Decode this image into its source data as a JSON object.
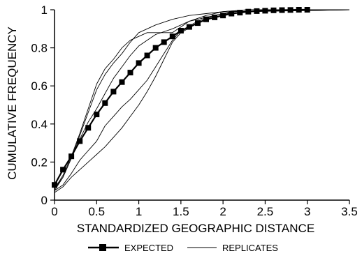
{
  "chart_data": {
    "type": "line",
    "title": "",
    "xlabel": "STANDARDIZED GEOGRAPHIC DISTANCE",
    "ylabel": "CUMULATIVE FREQUENCY",
    "xlim": [
      0,
      3.5
    ],
    "ylim": [
      0,
      1
    ],
    "xticks": [
      "0",
      "0.5",
      "1",
      "1.5",
      "2",
      "2.5",
      "3",
      "3.5"
    ],
    "yticks": [
      "0",
      "0.2",
      "0.4",
      "0.6",
      "0.8",
      "1"
    ],
    "grid": false,
    "legend_position": "bottom",
    "series": [
      {
        "name": "EXPECTED",
        "marker": "square",
        "x": [
          0.0,
          0.1,
          0.2,
          0.3,
          0.4,
          0.5,
          0.6,
          0.7,
          0.8,
          0.9,
          1.0,
          1.1,
          1.2,
          1.3,
          1.4,
          1.5,
          1.6,
          1.7,
          1.8,
          1.9,
          2.0,
          2.1,
          2.2,
          2.3,
          2.4,
          2.5,
          2.6,
          2.7,
          2.8,
          2.9,
          3.0
        ],
        "y": [
          0.08,
          0.16,
          0.23,
          0.31,
          0.38,
          0.45,
          0.51,
          0.57,
          0.62,
          0.67,
          0.72,
          0.76,
          0.8,
          0.83,
          0.86,
          0.89,
          0.91,
          0.93,
          0.95,
          0.96,
          0.97,
          0.98,
          0.985,
          0.99,
          0.993,
          0.995,
          0.997,
          0.998,
          0.999,
          1.0,
          1.0
        ]
      },
      {
        "name": "REPLICATES",
        "x": [
          0.0,
          0.1,
          0.2,
          0.3,
          0.4,
          0.5,
          0.6,
          0.7,
          0.8,
          0.9,
          1.0,
          1.2,
          1.4,
          1.6,
          1.8,
          2.0,
          2.3,
          3.5
        ],
        "y": [
          0.05,
          0.12,
          0.22,
          0.34,
          0.46,
          0.58,
          0.66,
          0.72,
          0.77,
          0.83,
          0.88,
          0.92,
          0.95,
          0.97,
          0.98,
          0.99,
          1.0,
          1.0
        ]
      },
      {
        "name": "REPLICATES",
        "x": [
          0.0,
          0.1,
          0.2,
          0.3,
          0.4,
          0.5,
          0.6,
          0.7,
          0.8,
          0.9,
          1.0,
          1.1,
          1.4,
          1.6,
          1.8,
          2.0,
          2.3,
          3.5
        ],
        "y": [
          0.06,
          0.13,
          0.23,
          0.35,
          0.48,
          0.61,
          0.69,
          0.74,
          0.8,
          0.84,
          0.86,
          0.88,
          0.88,
          0.94,
          0.97,
          0.99,
          1.0,
          1.0
        ]
      },
      {
        "name": "REPLICATES",
        "x": [
          0.0,
          0.1,
          0.2,
          0.3,
          0.4,
          0.5,
          0.6,
          0.7,
          0.8,
          0.9,
          1.0,
          1.2,
          1.4,
          1.6,
          1.8,
          2.0,
          2.3,
          3.5
        ],
        "y": [
          0.06,
          0.12,
          0.22,
          0.32,
          0.41,
          0.48,
          0.56,
          0.64,
          0.7,
          0.76,
          0.81,
          0.87,
          0.9,
          0.94,
          0.96,
          0.98,
          0.99,
          1.0
        ]
      },
      {
        "name": "REPLICATES",
        "x": [
          0.0,
          0.1,
          0.2,
          0.3,
          0.4,
          0.5,
          0.6,
          0.7,
          0.8,
          0.9,
          1.0,
          1.1,
          1.2,
          1.3,
          1.4,
          1.5,
          1.7,
          1.9,
          2.1,
          3.5
        ],
        "y": [
          0.05,
          0.08,
          0.14,
          0.21,
          0.26,
          0.31,
          0.39,
          0.44,
          0.49,
          0.53,
          0.58,
          0.63,
          0.7,
          0.77,
          0.84,
          0.89,
          0.94,
          0.97,
          0.99,
          1.0
        ]
      },
      {
        "name": "REPLICATES",
        "x": [
          0.0,
          0.1,
          0.2,
          0.3,
          0.4,
          0.5,
          0.6,
          0.7,
          0.8,
          0.9,
          1.0,
          1.1,
          1.2,
          1.3,
          1.4,
          1.5,
          1.7,
          1.9,
          2.1,
          3.5
        ],
        "y": [
          0.04,
          0.07,
          0.12,
          0.16,
          0.2,
          0.24,
          0.28,
          0.33,
          0.38,
          0.44,
          0.5,
          0.57,
          0.65,
          0.74,
          0.83,
          0.88,
          0.93,
          0.96,
          0.99,
          1.0
        ]
      }
    ]
  },
  "legend": {
    "expected_label": "EXPECTED",
    "replicates_label": "REPLICATES"
  }
}
